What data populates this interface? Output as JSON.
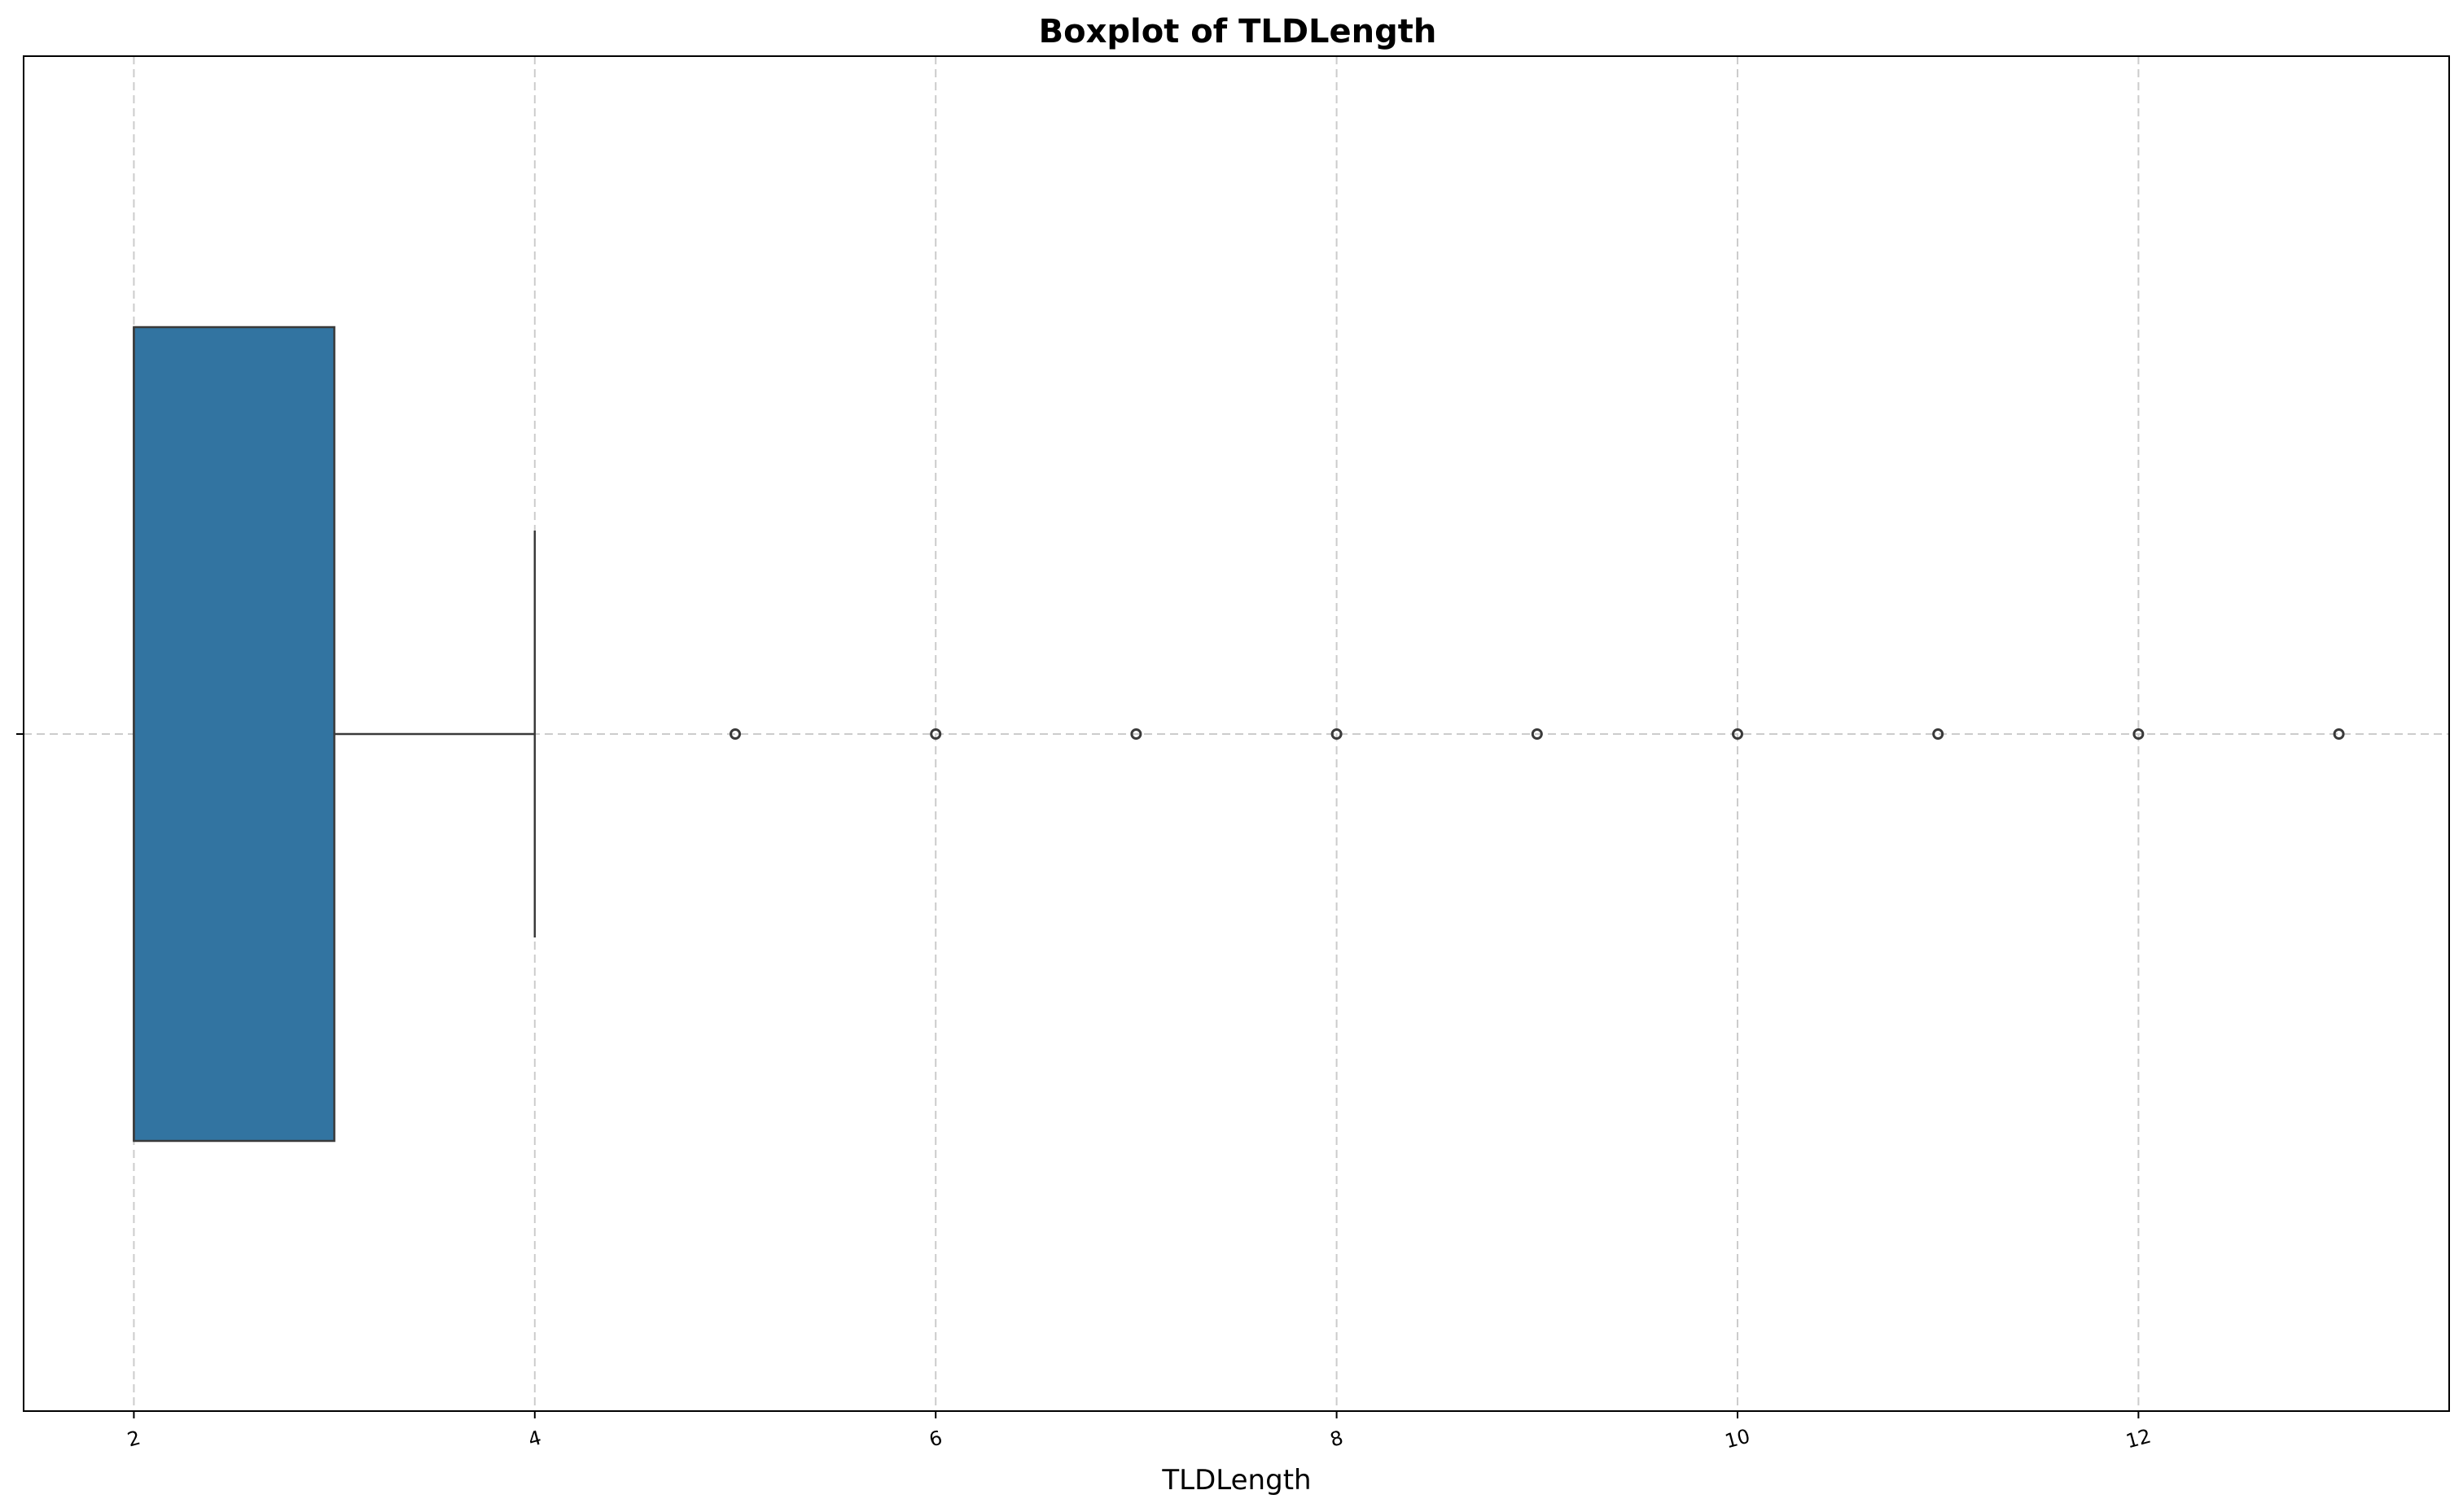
{
  "chart_data": {
    "type": "boxplot",
    "title": "Boxplot of TLDLength",
    "xlabel": "TLDLength",
    "ylabel": "",
    "xlim": [
      1.45,
      13.55
    ],
    "xticks": [
      2,
      4,
      6,
      8,
      10,
      12
    ],
    "xtick_labels": [
      "2",
      "4",
      "6",
      "8",
      "10",
      "12"
    ],
    "grid": true,
    "box": {
      "q1": 2,
      "median": 2,
      "q3": 3,
      "whisker_low": 2,
      "whisker_high": 4,
      "fill_color": "#3274a1",
      "edge_color": "#3a3a3a"
    },
    "outliers": [
      5,
      6,
      7,
      8,
      9,
      10,
      11,
      12,
      13
    ]
  }
}
